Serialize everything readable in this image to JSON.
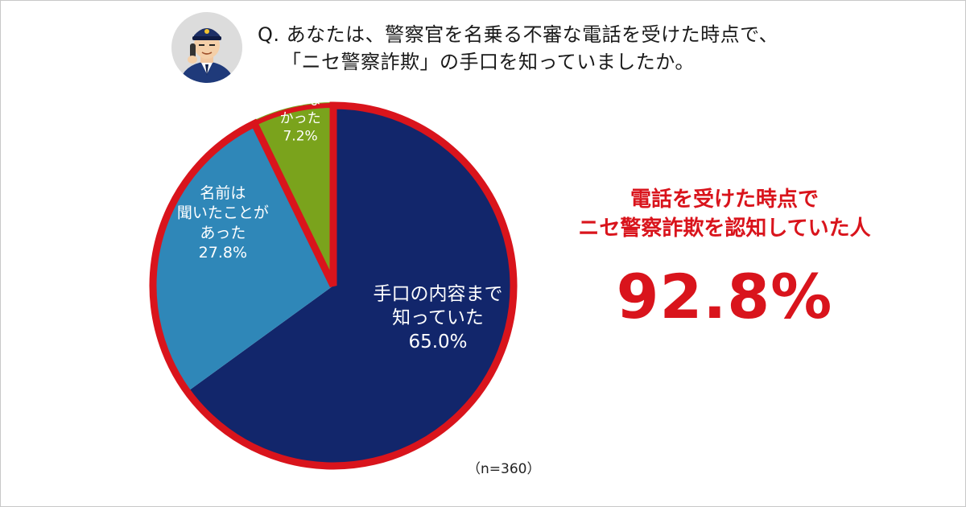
{
  "question": {
    "line1": "Q. あなたは、警察官を名乗る不審な電話を受けた時点で、",
    "line2": "「ニセ警察詐欺」の手口を知っていましたか。"
  },
  "highlight": {
    "caption_line1": "電話を受けた時点で",
    "caption_line2": "ニセ警察詐欺を認知していた人",
    "value": "92.8%"
  },
  "sample_size": "（n=360）",
  "icons": {
    "avatar": "police-officer-on-phone-icon"
  },
  "colors": {
    "known_detail": "#12266b",
    "heard_name": "#2f87b8",
    "not_known": "#7aa31c",
    "highlight_red": "#d9141c"
  },
  "chart_data": {
    "type": "pie",
    "title": "",
    "slices": [
      {
        "label_lines": [
          "手口の内容まで",
          "知っていた"
        ],
        "value_label": "65.0%",
        "value": 65.0,
        "color": "#12266b"
      },
      {
        "label_lines": [
          "名前は",
          "聞いたことが",
          "あった"
        ],
        "value_label": "27.8%",
        "value": 27.8,
        "color": "#2f87b8"
      },
      {
        "label_lines": [
          "知らな",
          "かった"
        ],
        "value_label": "7.2%",
        "value": 7.2,
        "color": "#7aa31c"
      }
    ],
    "emphasized_group": {
      "slices": [
        0,
        1
      ],
      "total": 92.8,
      "outline_color": "#d9141c"
    }
  }
}
